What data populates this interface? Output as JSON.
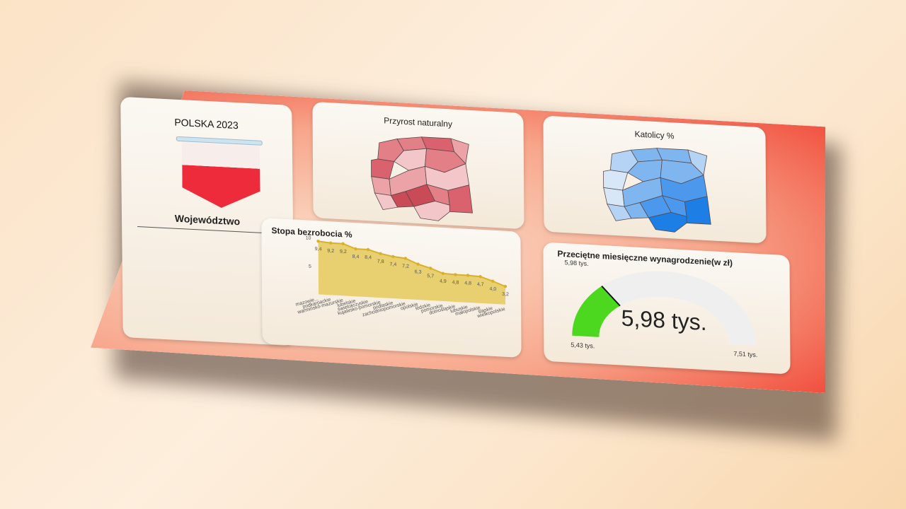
{
  "sidebar": {
    "title": "POLSKA 2023",
    "slicer_label": "Województwo"
  },
  "cards": {
    "przyrost": {
      "title": "Przyrost naturalny"
    },
    "katolicy": {
      "title": "Katolicy %"
    },
    "gauge": {
      "title": "Przeciętne miesięczne wynagrodzenie(w zł)",
      "value_label": "5,98 tys.",
      "target_label": "5,98 tys.",
      "min_label": "5,43 tys.",
      "max_label": "7,51 tys.",
      "min": 5.43,
      "max": 7.51,
      "value": 5.98,
      "fill_color": "#4bd81f"
    }
  },
  "colors": {
    "przyrost": [
      "#d9626e",
      "#e27f87",
      "#eca3a8",
      "#f3c7c9",
      "#c94b57"
    ],
    "katolicy": [
      "#1d7ee6",
      "#4b98ec",
      "#7fb6f0",
      "#b5d4f5",
      "#d8e7f8"
    ],
    "area_fill": "#e8cf6f",
    "area_line": "#d8b12a"
  },
  "chart_data": {
    "type": "area",
    "title": "Stopa bezrobocia %",
    "categories": [
      "mazowie...",
      "podkarpackie",
      "warmińsko-mazurskie",
      "lubelskie",
      "świętokrzyskie",
      "kujawsko-pomorskie",
      "podlaskie",
      "zachodniopomorskie",
      "opolskie",
      "łódzkie",
      "pomorskie",
      "dolnośląskie",
      "lubuskie",
      "małopolskie",
      "śląskie",
      "wielkopolskie"
    ],
    "values": [
      9.4,
      9.2,
      9.2,
      8.4,
      8.4,
      7.8,
      7.4,
      7.2,
      6.3,
      5.7,
      4.9,
      4.8,
      4.8,
      4.7,
      4.0,
      3.2
    ],
    "value_labels": [
      "9,4",
      "9,2",
      "9,2",
      "8,4",
      "8,4",
      "7,8",
      "7,4",
      "7,2",
      "6,3",
      "5,7",
      "4,9",
      "4,8",
      "4,8",
      "4,7",
      "4,0",
      "3,2"
    ],
    "ylim": [
      0,
      10
    ],
    "yticks": [
      "5",
      "10"
    ]
  }
}
